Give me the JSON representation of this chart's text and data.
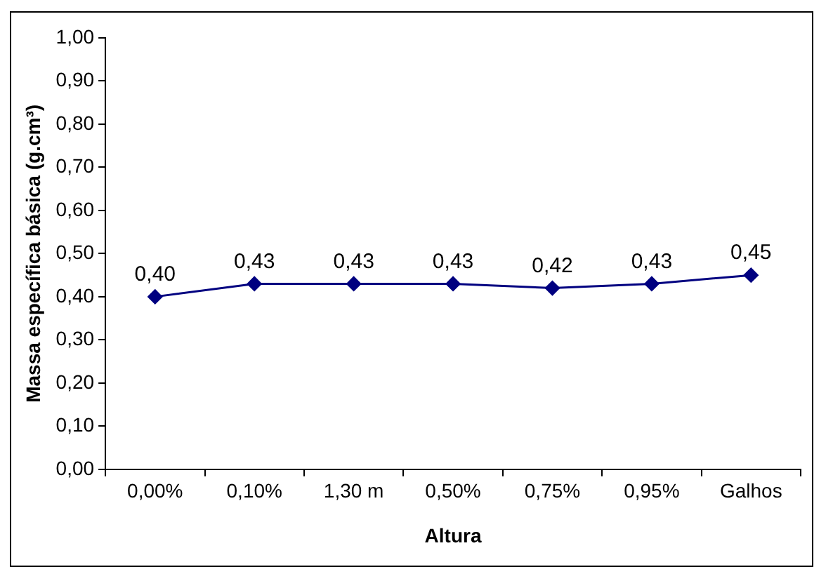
{
  "chart_data": {
    "type": "line",
    "xlabel": "Altura",
    "ylabel": "Massa específica básica (g.cm³)",
    "categories": [
      "0,00%",
      "0,10%",
      "1,30 m",
      "0,50%",
      "0,75%",
      "0,95%",
      "Galhos"
    ],
    "series": [
      {
        "color": "#000080",
        "values": [
          0.4,
          0.43,
          0.43,
          0.43,
          0.42,
          0.43,
          0.45
        ],
        "value_labels": [
          "0,40",
          "0,43",
          "0,43",
          "0,43",
          "0,42",
          "0,43",
          "0,45"
        ]
      }
    ],
    "ylim": [
      0,
      1
    ],
    "yticks": [
      {
        "value": 0,
        "label": "0,00"
      },
      {
        "value": 0.1,
        "label": "0,10"
      },
      {
        "value": 0.2,
        "label": "0,20"
      },
      {
        "value": 0.3,
        "label": "0,30"
      },
      {
        "value": 0.4,
        "label": "0,40"
      },
      {
        "value": 0.5,
        "label": "0,50"
      },
      {
        "value": 0.6,
        "label": "0,60"
      },
      {
        "value": 0.7,
        "label": "0,70"
      },
      {
        "value": 0.8,
        "label": "0,80"
      },
      {
        "value": 0.9,
        "label": "0,90"
      },
      {
        "value": 1,
        "label": "1,00"
      }
    ],
    "marker": "diamond",
    "line_style": "solid",
    "grid": false,
    "legend": false
  }
}
